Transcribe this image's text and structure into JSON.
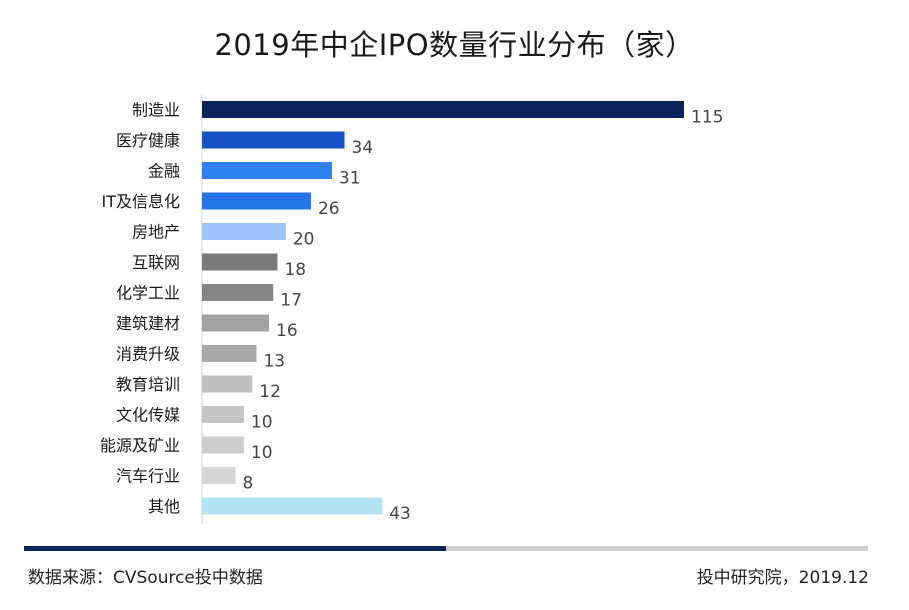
{
  "chart_data": {
    "type": "bar",
    "orientation": "horizontal",
    "title": "2019年中企IPO数量行业分布（家）",
    "categories": [
      "制造业",
      "医疗健康",
      "金融",
      "IT及信息化",
      "房地产",
      "互联网",
      "化学工业",
      "建筑建材",
      "消费升级",
      "教育培训",
      "文化传媒",
      "能源及矿业",
      "汽车行业",
      "其他"
    ],
    "values": [
      115,
      34,
      31,
      26,
      20,
      18,
      17,
      16,
      13,
      12,
      10,
      10,
      8,
      43
    ],
    "colors": [
      "#0b2358",
      "#1752c4",
      "#2f80f0",
      "#2674e6",
      "#9ec2f8",
      "#7a7a7a",
      "#858585",
      "#a2a2a2",
      "#a9a9a9",
      "#bdbdbd",
      "#c6c6c6",
      "#cdcdcd",
      "#d6d6d6",
      "#b2e4f2"
    ],
    "xlim": [
      0,
      115
    ],
    "xlabel": "",
    "ylabel": "",
    "grid": false,
    "legend": "none"
  },
  "footer": {
    "source": "数据来源：CVSource投中数据",
    "credit": "投中研究院，2019.12"
  }
}
